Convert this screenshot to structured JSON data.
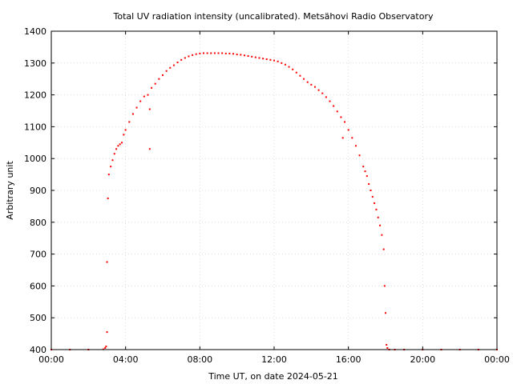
{
  "chart_data": {
    "type": "scatter",
    "title": "Total UV radiation intensity (uncalibrated). Metsähovi Radio Observatory",
    "xlabel": "Time UT, on date 2024-05-21",
    "ylabel": "Arbitrary unit",
    "xlim": [
      "00:00",
      "24:00"
    ],
    "ylim": [
      400,
      1400
    ],
    "x_ticks": [
      "00:00",
      "04:00",
      "08:00",
      "12:00",
      "16:00",
      "20:00",
      "00:00"
    ],
    "y_ticks": [
      400,
      500,
      600,
      700,
      800,
      900,
      1000,
      1100,
      1200,
      1300,
      1400
    ],
    "grid": true,
    "marker_color": "#ff0000",
    "series": [
      {
        "x_unit": "hours UT",
        "x": [
          0,
          1,
          2,
          2.8,
          2.9,
          2.95,
          3.0,
          3.0,
          3.05,
          3.1,
          3.2,
          3.3,
          3.4,
          3.5,
          3.6,
          3.7,
          3.8,
          3.9,
          4.0,
          4.2,
          4.4,
          4.6,
          4.8,
          5.0,
          5.2,
          5.3,
          5.3,
          5.4,
          5.6,
          5.8,
          6.0,
          6.2,
          6.4,
          6.6,
          6.8,
          7.0,
          7.2,
          7.4,
          7.6,
          7.8,
          8.0,
          8.2,
          8.4,
          8.6,
          8.8,
          9.0,
          9.2,
          9.4,
          9.6,
          9.8,
          10.0,
          10.2,
          10.4,
          10.6,
          10.8,
          11.0,
          11.2,
          11.4,
          11.6,
          11.8,
          12.0,
          12.2,
          12.4,
          12.6,
          12.8,
          13.0,
          13.2,
          13.4,
          13.6,
          13.8,
          14.0,
          14.2,
          14.4,
          14.6,
          14.8,
          15.0,
          15.2,
          15.4,
          15.6,
          15.7,
          15.8,
          16.0,
          16.2,
          16.4,
          16.6,
          16.8,
          16.9,
          17.0,
          17.1,
          17.2,
          17.3,
          17.4,
          17.5,
          17.6,
          17.7,
          17.8,
          17.9,
          17.95,
          18.0,
          18.05,
          18.1,
          18.2,
          18.5,
          19,
          20,
          21,
          22,
          23,
          24
        ],
        "y": [
          400,
          400,
          400,
          401,
          405,
          410,
          455,
          675,
          875,
          950,
          975,
          995,
          1015,
          1030,
          1040,
          1045,
          1050,
          1075,
          1090,
          1115,
          1140,
          1160,
          1180,
          1195,
          1200,
          1030,
          1155,
          1222,
          1235,
          1250,
          1262,
          1275,
          1285,
          1293,
          1302,
          1310,
          1316,
          1321,
          1325,
          1328,
          1330,
          1331,
          1331,
          1331,
          1331,
          1331,
          1331,
          1330,
          1330,
          1329,
          1327,
          1326,
          1324,
          1322,
          1320,
          1318,
          1316,
          1314,
          1312,
          1310,
          1308,
          1305,
          1300,
          1295,
          1288,
          1280,
          1270,
          1260,
          1250,
          1240,
          1232,
          1225,
          1215,
          1205,
          1193,
          1180,
          1165,
          1148,
          1130,
          1065,
          1115,
          1090,
          1065,
          1040,
          1010,
          975,
          960,
          945,
          920,
          900,
          880,
          860,
          840,
          815,
          790,
          760,
          715,
          600,
          515,
          415,
          405,
          400,
          400,
          400,
          400,
          400,
          400,
          400,
          400
        ]
      }
    ]
  }
}
